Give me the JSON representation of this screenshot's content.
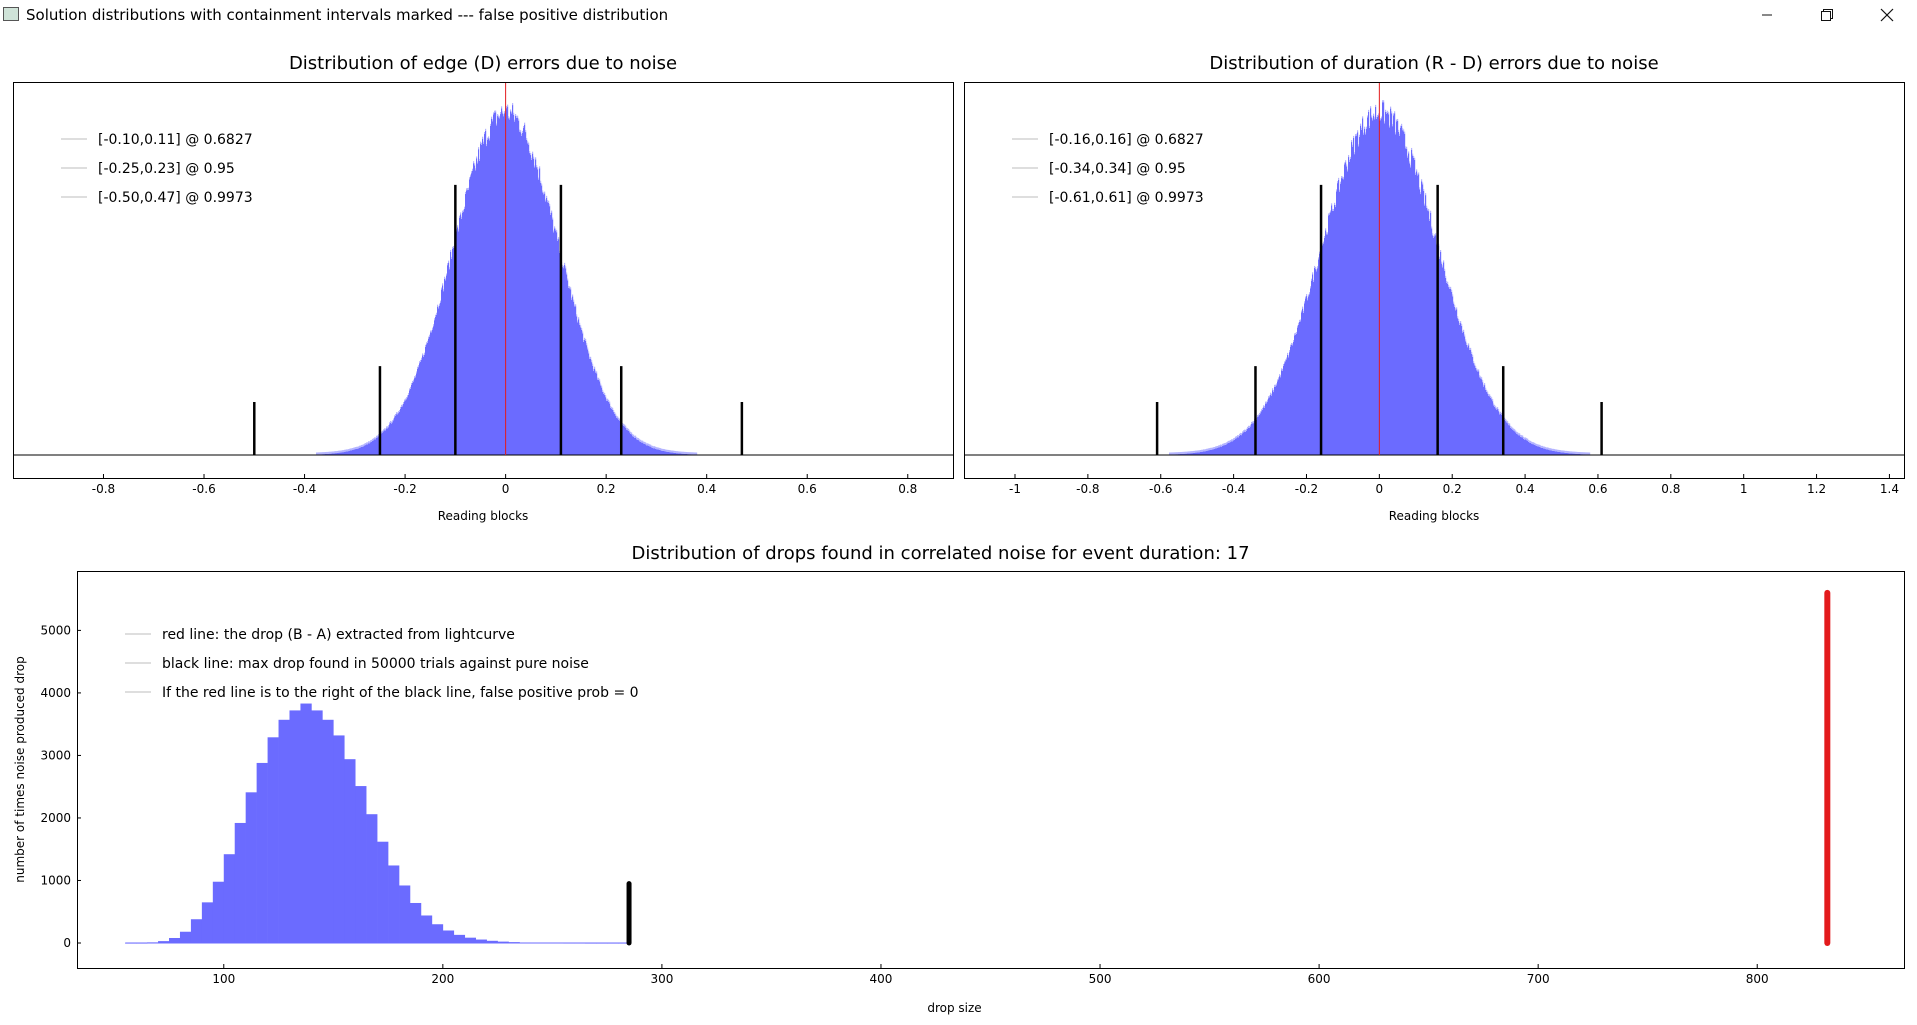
{
  "window": {
    "title": "Solution distributions with containment intervals marked --- false positive distribution",
    "minimize_icon": "minimize-icon",
    "maximize_icon": "restore-icon",
    "close_icon": "close-icon"
  },
  "chart_data": [
    {
      "type": "bar",
      "title": "Distribution of edge (D) errors due to noise",
      "xlabel": "Reading blocks",
      "ylabel": "",
      "xlim": [
        -0.98,
        0.89
      ],
      "xticks": [
        -0.8,
        -0.6,
        -0.4,
        -0.2,
        0,
        0.2,
        0.4,
        0.6,
        0.8
      ],
      "distribution": {
        "mean": 0.0,
        "sigma": 0.105,
        "peak_rel": 1.0
      },
      "center_line": 0.0,
      "interval_marks": [
        {
          "x": -0.1,
          "height_rel": 0.79
        },
        {
          "x": 0.11,
          "height_rel": 0.79
        },
        {
          "x": -0.25,
          "height_rel": 0.26
        },
        {
          "x": 0.23,
          "height_rel": 0.26
        },
        {
          "x": -0.5,
          "height_rel": 0.155
        },
        {
          "x": 0.47,
          "height_rel": 0.155
        }
      ],
      "legend": [
        "[-0.10,0.11] @ 0.6827",
        "[-0.25,0.23] @ 0.95",
        "[-0.50,0.47] @ 0.9973"
      ],
      "legend_position": "top-left",
      "colors": {
        "bars": "#6b6bff",
        "bar_edge": "#b4b4ff",
        "center_line": "#e31a1c",
        "marks": "#000000"
      }
    },
    {
      "type": "bar",
      "title": "Distribution of duration (R - D) errors due to noise",
      "xlabel": "Reading blocks",
      "ylabel": "",
      "xlim": [
        -1.14,
        1.44
      ],
      "xticks": [
        -1,
        -0.8,
        -0.6,
        -0.4,
        -0.2,
        0,
        0.2,
        0.4,
        0.6,
        0.8,
        1,
        1.2,
        1.4
      ],
      "distribution": {
        "mean": 0.0,
        "sigma": 0.16,
        "peak_rel": 1.0
      },
      "center_line": 0.0,
      "interval_marks": [
        {
          "x": -0.16,
          "height_rel": 0.79
        },
        {
          "x": 0.16,
          "height_rel": 0.79
        },
        {
          "x": -0.34,
          "height_rel": 0.26
        },
        {
          "x": 0.34,
          "height_rel": 0.26
        },
        {
          "x": -0.61,
          "height_rel": 0.155
        },
        {
          "x": 0.61,
          "height_rel": 0.155
        }
      ],
      "legend": [
        "[-0.16,0.16] @ 0.6827",
        "[-0.34,0.34] @ 0.95",
        "[-0.61,0.61] @ 0.9973"
      ],
      "legend_position": "top-left",
      "colors": {
        "bars": "#6b6bff",
        "bar_edge": "#b4b4ff",
        "center_line": "#e31a1c",
        "marks": "#000000"
      }
    },
    {
      "type": "bar",
      "title": "Distribution of drops found in correlated noise for event duration: 17",
      "xlabel": "drop size",
      "ylabel": "number of times noise produced drop",
      "xlim": [
        33,
        867
      ],
      "ylim": [
        -400,
        5950
      ],
      "xticks": [
        100,
        200,
        300,
        400,
        500,
        600,
        700,
        800
      ],
      "yticks": [
        0,
        1000,
        2000,
        3000,
        4000,
        5000
      ],
      "bin_width": 5,
      "bins_x": [
        55,
        60,
        65,
        70,
        75,
        80,
        85,
        90,
        95,
        100,
        105,
        110,
        115,
        120,
        125,
        130,
        135,
        140,
        145,
        150,
        155,
        160,
        165,
        170,
        175,
        180,
        185,
        190,
        195,
        200,
        205,
        210,
        215,
        220,
        225,
        230,
        235,
        240,
        245,
        250,
        255,
        260,
        265,
        270,
        275,
        280
      ],
      "values": [
        0,
        0,
        10,
        30,
        80,
        180,
        380,
        650,
        980,
        1420,
        1920,
        2410,
        2880,
        3290,
        3570,
        3720,
        3830,
        3720,
        3570,
        3320,
        2940,
        2510,
        2060,
        1620,
        1240,
        920,
        640,
        440,
        300,
        200,
        130,
        85,
        55,
        35,
        22,
        14,
        8,
        5,
        3,
        2,
        1,
        1,
        0,
        0,
        0,
        0
      ],
      "black_line": {
        "x": 285,
        "y": 950
      },
      "red_line": {
        "x": 832,
        "y": 5600
      },
      "legend": [
        "red line: the drop (B - A) extracted from lightcurve",
        "black line: max drop found in 50000 trials against pure noise",
        "If the red line is to the right of the black line, false positive prob = 0"
      ],
      "legend_position": "top-left",
      "colors": {
        "bars": "#6b6bff",
        "red_line": "#e31a1c",
        "black_line": "#000000"
      }
    }
  ]
}
